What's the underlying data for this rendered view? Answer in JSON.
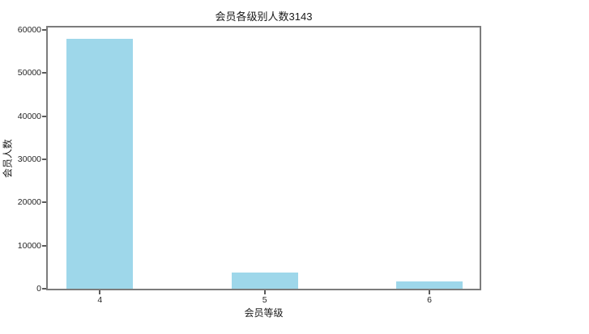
{
  "figure": {
    "background": "#ffffff",
    "axis_color": "#7c7c7c",
    "text_color": "#1f1f1f"
  },
  "chart_data": {
    "type": "bar",
    "title": "会员各级别人数3143",
    "xlabel": "会员等级",
    "ylabel": "会员人数",
    "categories": [
      "4",
      "5",
      "6"
    ],
    "values": [
      58000,
      3700,
      1650
    ],
    "yticks": [
      0,
      10000,
      20000,
      30000,
      40000,
      50000,
      60000
    ],
    "ylim": [
      0,
      60560
    ],
    "bar_color": "#9ed7ea",
    "grid": false,
    "legend": "none"
  }
}
